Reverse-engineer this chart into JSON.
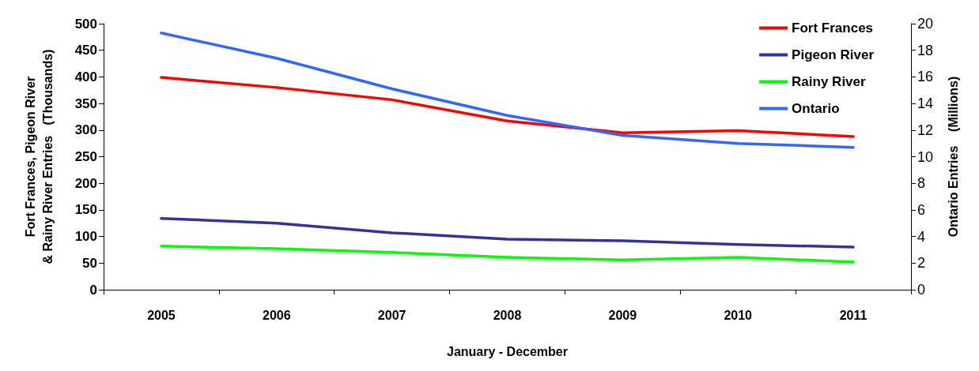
{
  "chart_data": {
    "type": "line",
    "xlabel": "January - December",
    "ylabel": "Fort Frances, Pigeon River\n& Rainy River Entries   (Thousands)",
    "y2label": "Ontario Entries    (Millions)",
    "categories": [
      "2005",
      "2006",
      "2007",
      "2008",
      "2009",
      "2010",
      "2011"
    ],
    "series": [
      {
        "name": "Fort Frances",
        "color": "#ff0000",
        "values": [
          399,
          380,
          357,
          317,
          295,
          299,
          288
        ]
      },
      {
        "name": "Pigeon River",
        "color": "#333399",
        "values": [
          134,
          125,
          107,
          95,
          92,
          85,
          80
        ]
      },
      {
        "name": "Rainy River",
        "color": "#00ff00",
        "values": [
          82,
          77,
          70,
          61,
          56,
          61,
          52
        ]
      },
      {
        "name": "Ontario",
        "color": "#3366ff",
        "axis": "y2",
        "values": [
          19.3,
          17.4,
          15.1,
          13.1,
          11.6,
          11.0,
          10.7
        ]
      }
    ],
    "ylim": [
      0,
      500
    ],
    "yticks": [
      0,
      50,
      100,
      150,
      200,
      250,
      300,
      350,
      400,
      450,
      500
    ],
    "y2lim": [
      0,
      20
    ],
    "y2ticks": [
      0,
      2,
      4,
      6,
      8,
      10,
      12,
      14,
      16,
      18,
      20
    ],
    "legend": "top right"
  }
}
